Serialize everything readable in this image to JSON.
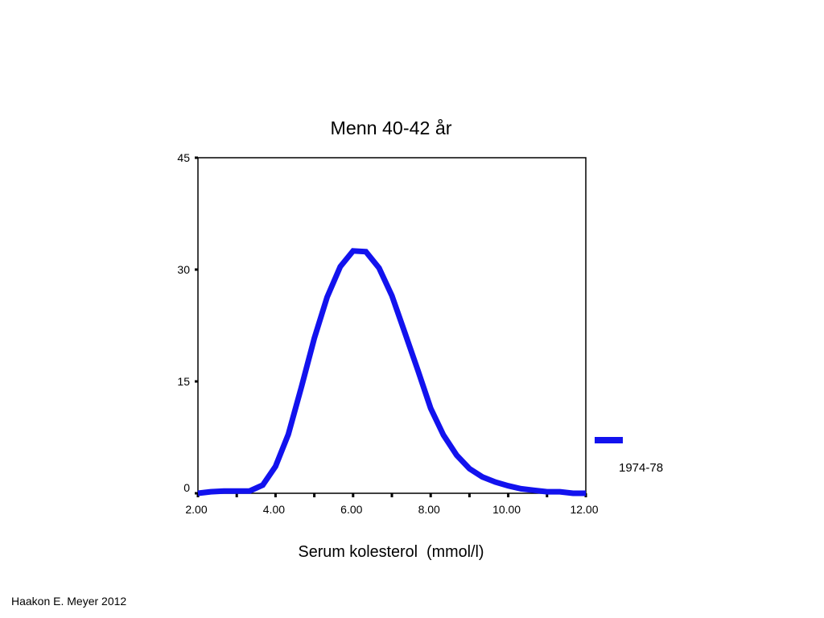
{
  "footer": {
    "credit": "Haakon E. Meyer 2012"
  },
  "chart_data": {
    "type": "line",
    "title": "Menn 40-42 år",
    "xlabel": "Serum kolesterol  (mmol/l)",
    "ylabel": "",
    "xlim": [
      2,
      12
    ],
    "ylim": [
      0,
      45
    ],
    "xticks": {
      "values": [
        2,
        4,
        6,
        8,
        10,
        12
      ],
      "labels": [
        "2.00",
        "4.00",
        "6.00",
        "8.00",
        "10.00",
        "12.00"
      ]
    },
    "x_minor_ticks": [
      3,
      5,
      7,
      9,
      11
    ],
    "yticks": {
      "values": [
        0,
        15,
        30,
        45
      ],
      "labels": [
        "0",
        "15",
        "30",
        "45"
      ]
    },
    "grid": false,
    "legend": {
      "position": "right"
    },
    "series": [
      {
        "name": "1974-78",
        "color": "#1212ee",
        "x": [
          2.0,
          2.33,
          2.67,
          3.0,
          3.33,
          3.67,
          4.0,
          4.33,
          4.67,
          5.0,
          5.33,
          5.67,
          6.0,
          6.33,
          6.67,
          7.0,
          7.33,
          7.67,
          8.0,
          8.33,
          8.67,
          9.0,
          9.33,
          9.67,
          10.0,
          10.33,
          10.67,
          11.0,
          11.33,
          11.67,
          12.0
        ],
        "y": [
          0.0,
          0.2,
          0.3,
          0.3,
          0.3,
          1.1,
          3.6,
          7.9,
          14.3,
          20.8,
          26.3,
          30.4,
          32.5,
          32.4,
          30.2,
          26.5,
          21.6,
          16.5,
          11.4,
          7.8,
          5.1,
          3.3,
          2.2,
          1.5,
          1.0,
          0.6,
          0.4,
          0.2,
          0.2,
          0.0,
          0.0
        ]
      }
    ]
  }
}
